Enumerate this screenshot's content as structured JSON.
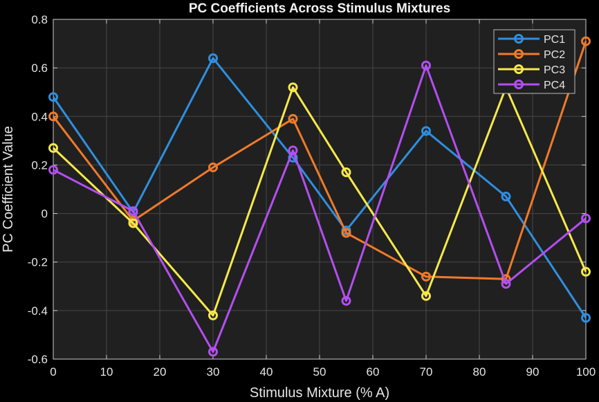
{
  "chart_data": {
    "type": "line",
    "title": "PC Coefficients Across Stimulus Mixtures",
    "xlabel": "Stimulus Mixture (% A)",
    "ylabel": "PC Coefficient Value",
    "x": [
      0,
      15,
      30,
      45,
      55,
      70,
      85,
      100
    ],
    "xlim": [
      0,
      100
    ],
    "ylim": [
      -0.6,
      0.8
    ],
    "xticks": [
      0,
      10,
      20,
      30,
      40,
      50,
      60,
      70,
      80,
      90,
      100
    ],
    "yticks": [
      -0.6,
      -0.4,
      -0.2,
      0,
      0.2,
      0.4,
      0.6,
      0.8
    ],
    "xtick_labels": [
      "0",
      "10",
      "20",
      "30",
      "40",
      "50",
      "60",
      "70",
      "80",
      "90",
      "100"
    ],
    "ytick_labels": [
      "-0.6",
      "-0.4",
      "-0.2",
      "0",
      "0.2",
      "0.4",
      "0.6",
      "0.8"
    ],
    "grid": true,
    "legend_position": "top-right",
    "series": [
      {
        "name": "PC1",
        "color": "#2f8fe0",
        "values": [
          0.48,
          0.005,
          0.64,
          0.23,
          -0.07,
          0.34,
          0.07,
          -0.43
        ]
      },
      {
        "name": "PC2",
        "color": "#f07a2a",
        "values": [
          0.4,
          -0.03,
          0.19,
          0.39,
          -0.08,
          -0.26,
          -0.27,
          0.71
        ]
      },
      {
        "name": "PC3",
        "color": "#f7e84a",
        "values": [
          0.27,
          -0.04,
          -0.42,
          0.52,
          0.17,
          -0.34,
          0.52,
          -0.24
        ]
      },
      {
        "name": "PC4",
        "color": "#b34ff0",
        "values": [
          0.18,
          0.01,
          -0.57,
          0.26,
          -0.36,
          0.61,
          -0.29,
          -0.02
        ]
      }
    ]
  }
}
